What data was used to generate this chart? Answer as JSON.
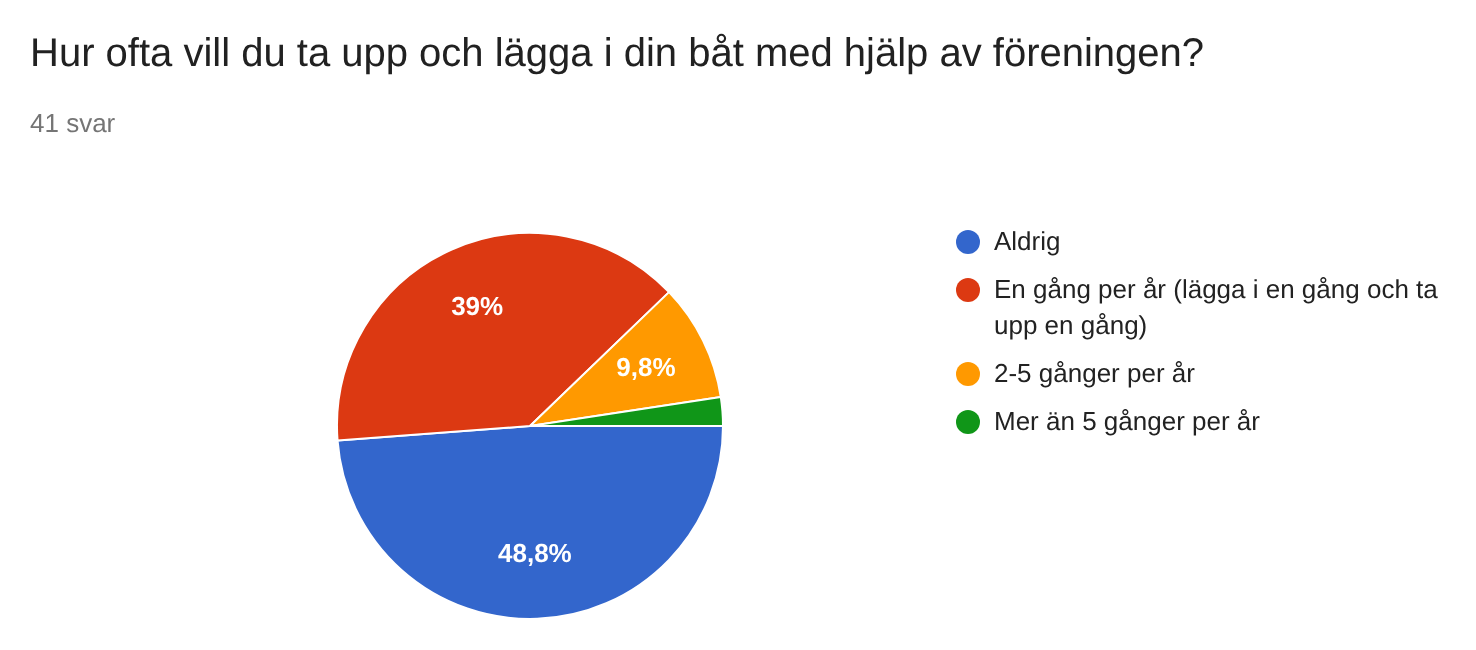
{
  "chart_data": {
    "type": "pie",
    "title": "Hur ofta vill du ta upp och lägga i din båt med hjälp av föreningen?",
    "subtitle": "41 svar",
    "categories": [
      "Aldrig",
      "En gång per år (lägga i en gång och ta upp en gång)",
      "2-5 gånger per år",
      "Mer än 5 gånger per år"
    ],
    "values": [
      48.8,
      39,
      9.8,
      2.4
    ],
    "colors": [
      "#3366cc",
      "#dc3912",
      "#ff9900",
      "#109618"
    ],
    "value_labels": [
      "48,8%",
      "39%",
      "9,8%",
      null
    ],
    "legend": "right"
  }
}
